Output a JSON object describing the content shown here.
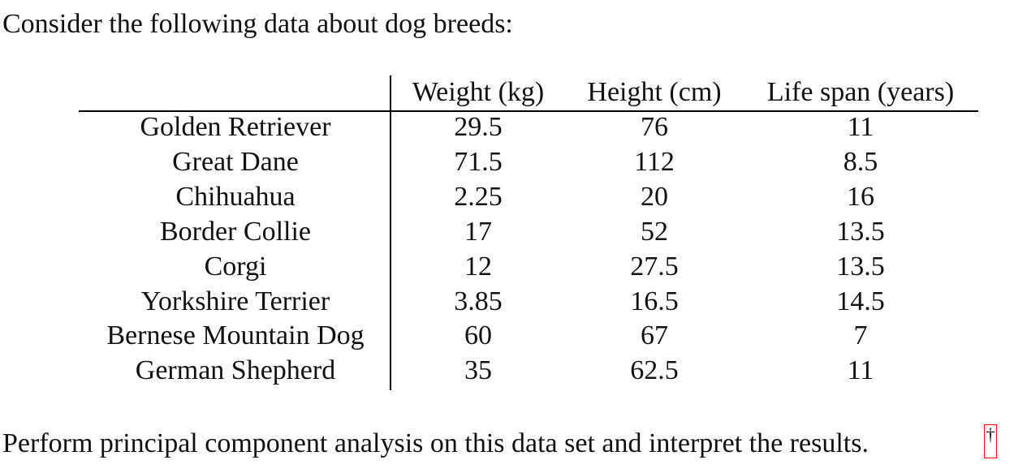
{
  "intro": "Consider the following data about dog breeds:",
  "table": {
    "header": [
      "Weight (kg)",
      "Height (cm)",
      "Life span (years)"
    ],
    "rows": [
      [
        "Golden Retriever",
        29.5,
        76,
        11
      ],
      [
        "Great Dane",
        71.5,
        112,
        8.5
      ],
      [
        "Chihuahua",
        2.25,
        20,
        16
      ],
      [
        "Border Collie",
        17,
        52,
        13.5
      ],
      [
        "Corgi",
        12,
        27.5,
        13.5
      ],
      [
        "Yorkshire Terrier",
        3.85,
        16.5,
        14.5
      ],
      [
        "Bernese Mountain Dog",
        60,
        67,
        7
      ],
      [
        "German Shepherd",
        35,
        62.5,
        11
      ]
    ]
  },
  "outro": "Perform principal component analysis on this data set and interpret the results.",
  "footnote_mark": "†"
}
